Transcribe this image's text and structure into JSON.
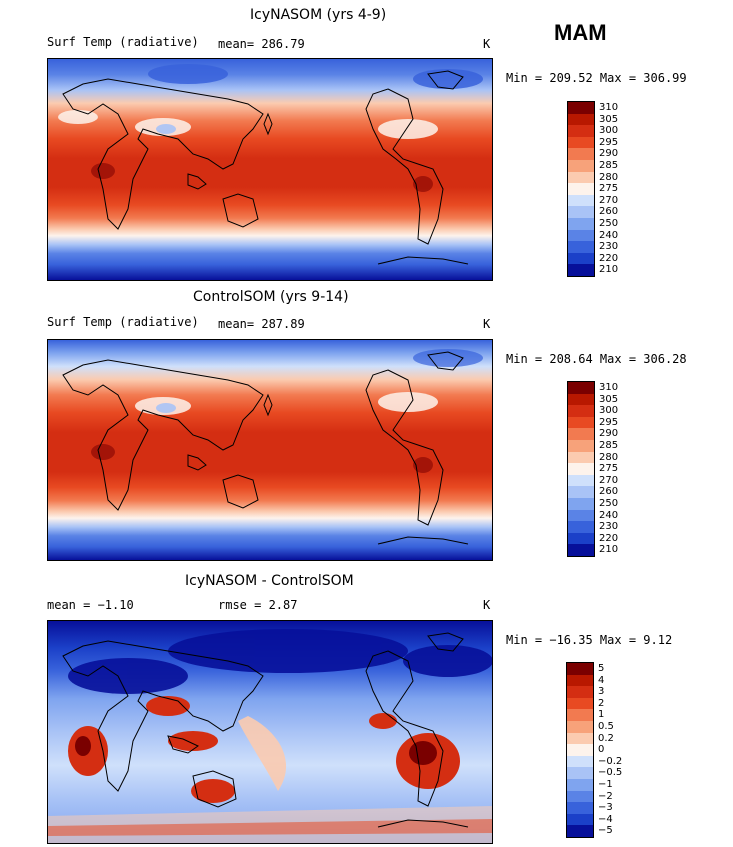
{
  "season": "MAM",
  "panels": [
    {
      "title": "IcyNASOM (yrs 4-9)",
      "left_label": "Surf Temp (radiative)",
      "center_label": "mean= 286.79",
      "units": "K",
      "minmax": "Min = 209.52 Max = 306.99",
      "colorbar_labels": [
        "310",
        "305",
        "300",
        "295",
        "290",
        "285",
        "280",
        "275",
        "270",
        "260",
        "250",
        "240",
        "230",
        "220",
        "210"
      ]
    },
    {
      "title": "ControlSOM (yrs 9-14)",
      "left_label": "Surf Temp (radiative)",
      "center_label": "mean= 287.89",
      "units": "K",
      "minmax": "Min = 208.64 Max = 306.28",
      "colorbar_labels": [
        "310",
        "305",
        "300",
        "295",
        "290",
        "285",
        "280",
        "275",
        "270",
        "260",
        "250",
        "240",
        "230",
        "220",
        "210"
      ]
    },
    {
      "title": "IcyNASOM - ControlSOM",
      "left_label": "mean =  −1.10",
      "center_label": "rmse =   2.87",
      "units": "K",
      "minmax": "Min = −16.35 Max =   9.12",
      "colorbar_labels": [
        "5",
        "4",
        "3",
        "2",
        "1",
        "0.5",
        "0.2",
        "0",
        "−0.2",
        "−0.5",
        "−1",
        "−2",
        "−3",
        "−4",
        "−5"
      ]
    }
  ],
  "colors": {
    "abs_scale": [
      "#7a0000",
      "#b81800",
      "#d42e12",
      "#e84a22",
      "#f27a50",
      "#f7a27a",
      "#fbcbb0",
      "#fdf3ec",
      "#cfe0fb",
      "#a9c3f6",
      "#7fa4ef",
      "#5a83e6",
      "#3862db",
      "#1b40c8",
      "#07109a"
    ],
    "diff_scale": [
      "#7a0000",
      "#b81800",
      "#d42e12",
      "#e84a22",
      "#f27a50",
      "#f7a27a",
      "#fbcbb0",
      "#fdf3ec",
      "#cfe0fb",
      "#a9c3f6",
      "#7fa4ef",
      "#5a83e6",
      "#3862db",
      "#1b40c8",
      "#07109a"
    ]
  }
}
